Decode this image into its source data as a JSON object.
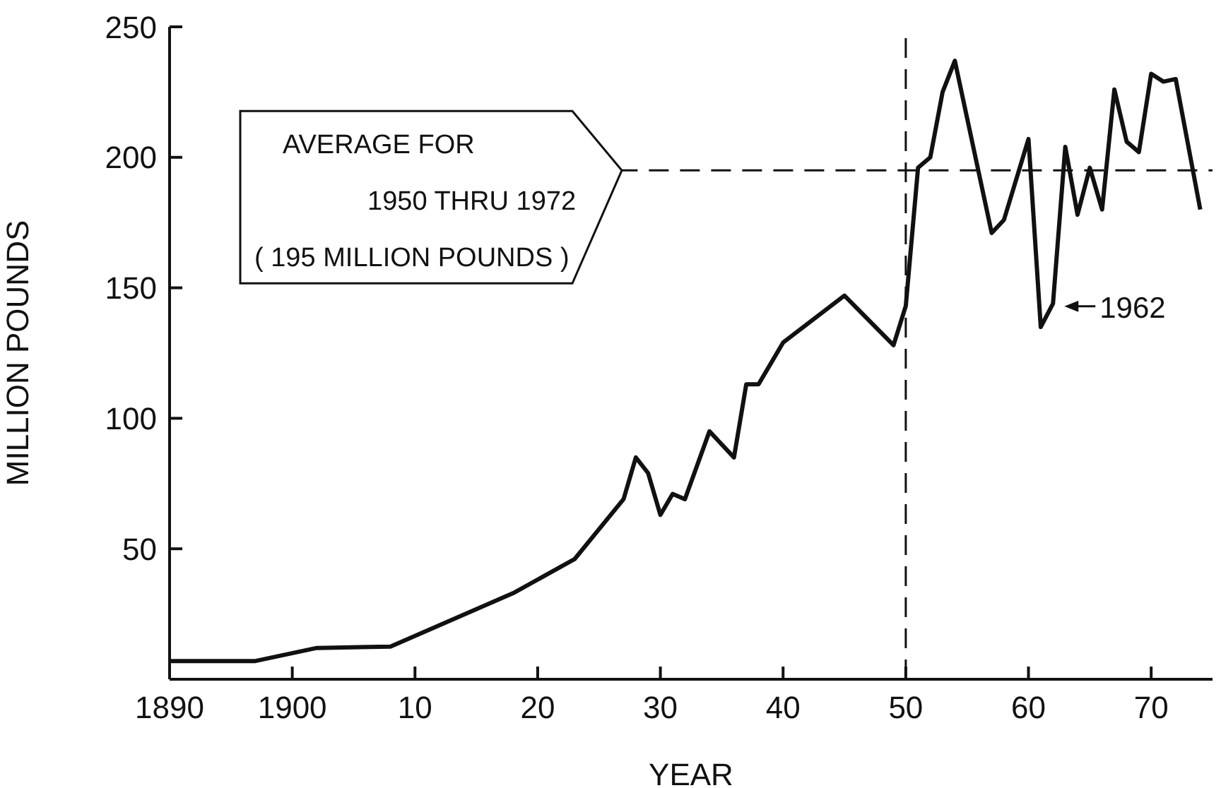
{
  "chart_data": {
    "type": "line",
    "xlabel": "YEAR",
    "ylabel": "MILLION POUNDS",
    "x": [
      1890,
      1897,
      1902,
      1908,
      1918,
      1923,
      1927,
      1928,
      1929,
      1930,
      1931,
      1932,
      1934,
      1936,
      1937,
      1938,
      1940,
      1945,
      1949,
      1950,
      1951,
      1952,
      1953,
      1954,
      1957,
      1958,
      1960,
      1961,
      1962,
      1963,
      1964,
      1965,
      1966,
      1967,
      1968,
      1969,
      1970,
      1971,
      1972,
      1974
    ],
    "series": [
      {
        "color": "#111111",
        "values": [
          7,
          7,
          12,
          12.5,
          33,
          46,
          69,
          85,
          79,
          63,
          71,
          69,
          95,
          85,
          113,
          113,
          129,
          147,
          128,
          143,
          196,
          200,
          225,
          237,
          171,
          176,
          207,
          135,
          144,
          204,
          178,
          196,
          180,
          226,
          206,
          202,
          232,
          229,
          230,
          180
        ]
      }
    ],
    "xlim": [
      1890,
      1975
    ],
    "xticks": [
      1890,
      1900,
      {
        "value": 1910,
        "label": "10"
      },
      {
        "value": 1920,
        "label": "20"
      },
      {
        "value": 1930,
        "label": "30"
      },
      {
        "value": 1940,
        "label": "40"
      },
      {
        "value": 1950,
        "label": "50"
      },
      {
        "value": 1960,
        "label": "60"
      },
      {
        "value": 1970,
        "label": "70"
      }
    ],
    "ylim": [
      0,
      250
    ],
    "yticks": [
      {
        "value": 0,
        "label": null
      },
      50,
      100,
      150,
      200,
      250
    ],
    "ref_lines": [
      {
        "axis": "y",
        "value": 195,
        "label": "AVERAGE FOR\n1950 THRU 1972\n( 195 MILLION POUNDS )",
        "line_style": "dashed"
      },
      {
        "axis": "x",
        "value": 1950,
        "label": null,
        "line_style": "dashed"
      }
    ],
    "annotations": [
      {
        "text": "1962",
        "x": 1962,
        "y": 144
      }
    ],
    "grid": false,
    "legend": false,
    "marker": "none",
    "line_style": "solid"
  }
}
